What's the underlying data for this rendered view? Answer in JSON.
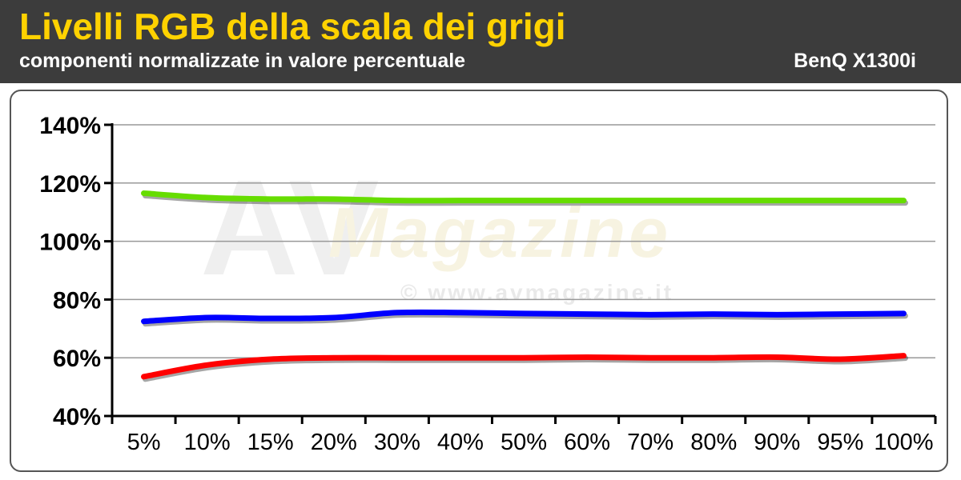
{
  "header": {
    "title": "Livelli RGB della scala dei grigi",
    "subtitle": "componenti normalizzate in valore percentuale",
    "model": "BenQ X1300i"
  },
  "watermark": {
    "brand": "Magazine",
    "url": "© www.avmagazine.it",
    "logo": "AV"
  },
  "colors": {
    "header_bg": "#3c3c3c",
    "title": "#ffd200",
    "red": "#ff0000",
    "green": "#66dd00",
    "blue": "#0000ff",
    "grid": "#999999"
  },
  "chart_data": {
    "type": "line",
    "title": "Livelli RGB della scala dei grigi",
    "subtitle": "componenti normalizzate in valore percentuale",
    "xlabel": "",
    "ylabel": "",
    "categories": [
      "5%",
      "10%",
      "15%",
      "20%",
      "30%",
      "40%",
      "50%",
      "60%",
      "70%",
      "80%",
      "90%",
      "95%",
      "100%"
    ],
    "y_ticks": [
      "40%",
      "60%",
      "80%",
      "100%",
      "120%",
      "140%"
    ],
    "ylim": [
      40,
      140
    ],
    "grid": true,
    "legend": "none",
    "series": [
      {
        "color": "#66dd00",
        "values": [
          116.5,
          115,
          114.5,
          114.5,
          114,
          114,
          114,
          114,
          114,
          114,
          114,
          114,
          114
        ]
      },
      {
        "color": "#0000ff",
        "values": [
          72.5,
          73.8,
          73.5,
          73.8,
          75.5,
          75.5,
          75.2,
          75,
          74.8,
          75,
          74.8,
          75,
          75.2
        ]
      },
      {
        "color": "#ff0000",
        "values": [
          53.5,
          57.5,
          59.5,
          60,
          60,
          60,
          60,
          60.2,
          60,
          60,
          60.2,
          59.5,
          60.7
        ]
      }
    ]
  }
}
